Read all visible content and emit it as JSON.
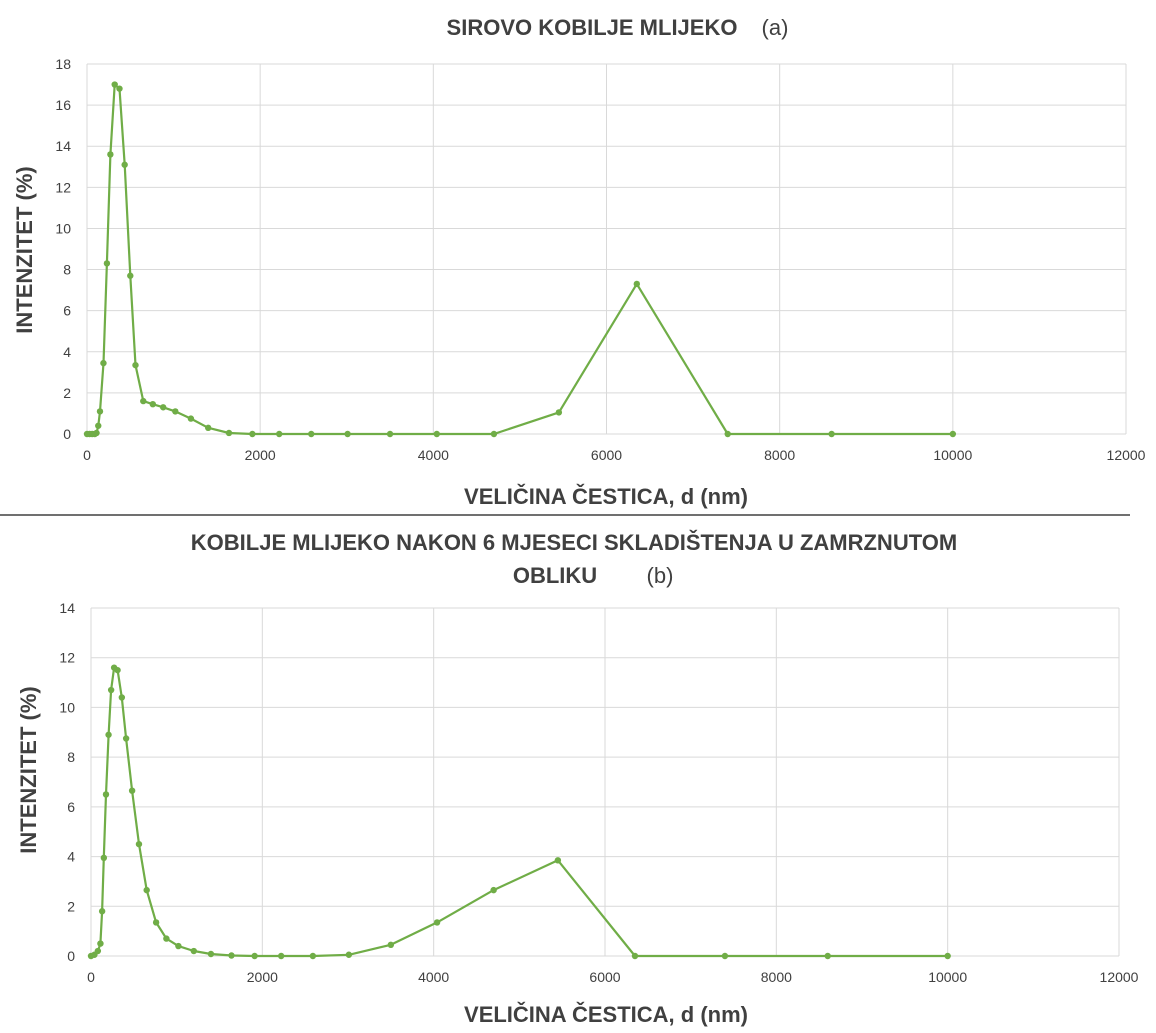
{
  "colors": {
    "series": "#70ad47",
    "grid": "#d9d9d9",
    "text": "#404040",
    "divider": "#404040"
  },
  "chart_data": [
    {
      "type": "line",
      "title": "SIROVO KOBILJE MLIJEKO",
      "panel_label": "(a)",
      "xlabel": "VELIČINA ČESTICA, d (nm)",
      "ylabel": "INTENZITET (%)",
      "xlim": [
        0,
        12000
      ],
      "ylim": [
        0,
        18
      ],
      "xticks": [
        "0",
        "2000",
        "4000",
        "6000",
        "8000",
        "10000",
        "12000"
      ],
      "yticks": [
        "0",
        "2",
        "4",
        "6",
        "8",
        "10",
        "12",
        "14",
        "16",
        "18"
      ],
      "grid": true,
      "series": [
        {
          "x": [
            0,
            30,
            60,
            90,
            110,
            130,
            150,
            190,
            230,
            270,
            320,
            375,
            435,
            500,
            560,
            650,
            760,
            880,
            1020,
            1200,
            1400,
            1640,
            1910,
            2220,
            2590,
            3010,
            3500,
            4040,
            4700,
            5450,
            6350,
            7400,
            8600,
            10000
          ],
          "y": [
            0,
            0,
            0,
            0,
            0.05,
            0.4,
            1.1,
            3.45,
            8.3,
            13.6,
            17.0,
            16.8,
            13.1,
            7.7,
            3.35,
            1.6,
            1.45,
            1.3,
            1.1,
            0.75,
            0.3,
            0.05,
            0,
            0,
            0,
            0,
            0,
            0,
            0,
            1.05,
            7.3,
            0,
            0,
            0
          ]
        }
      ]
    },
    {
      "type": "line",
      "title": "KOBILJE MLIJEKO NAKON 6 MJESECI SKLADIŠTENJA U ZAMRZNUTOM",
      "title_line2": "OBLIKU",
      "panel_label": "(b)",
      "xlabel": "VELIČINA ČESTICA, d (nm)",
      "ylabel": "INTENZITET (%)",
      "xlim": [
        0,
        12000
      ],
      "ylim": [
        0,
        14
      ],
      "xticks": [
        "0",
        "2000",
        "4000",
        "6000",
        "8000",
        "10000",
        "12000"
      ],
      "yticks": [
        "0",
        "2",
        "4",
        "6",
        "8",
        "10",
        "12",
        "14"
      ],
      "grid": true,
      "series": [
        {
          "x": [
            0,
            40,
            80,
            110,
            130,
            150,
            175,
            205,
            235,
            270,
            310,
            360,
            410,
            480,
            560,
            650,
            760,
            880,
            1020,
            1200,
            1400,
            1640,
            1910,
            2220,
            2590,
            3010,
            3500,
            4040,
            4700,
            5450,
            6350,
            7400,
            8600,
            10000
          ],
          "y": [
            0,
            0.05,
            0.2,
            0.5,
            1.8,
            3.95,
            6.5,
            8.9,
            10.7,
            11.6,
            11.5,
            10.4,
            8.75,
            6.65,
            4.5,
            2.65,
            1.35,
            0.7,
            0.4,
            0.2,
            0.08,
            0.02,
            0,
            0,
            0,
            0.05,
            0.45,
            1.35,
            2.65,
            3.85,
            0,
            0,
            0,
            0
          ]
        }
      ]
    }
  ]
}
